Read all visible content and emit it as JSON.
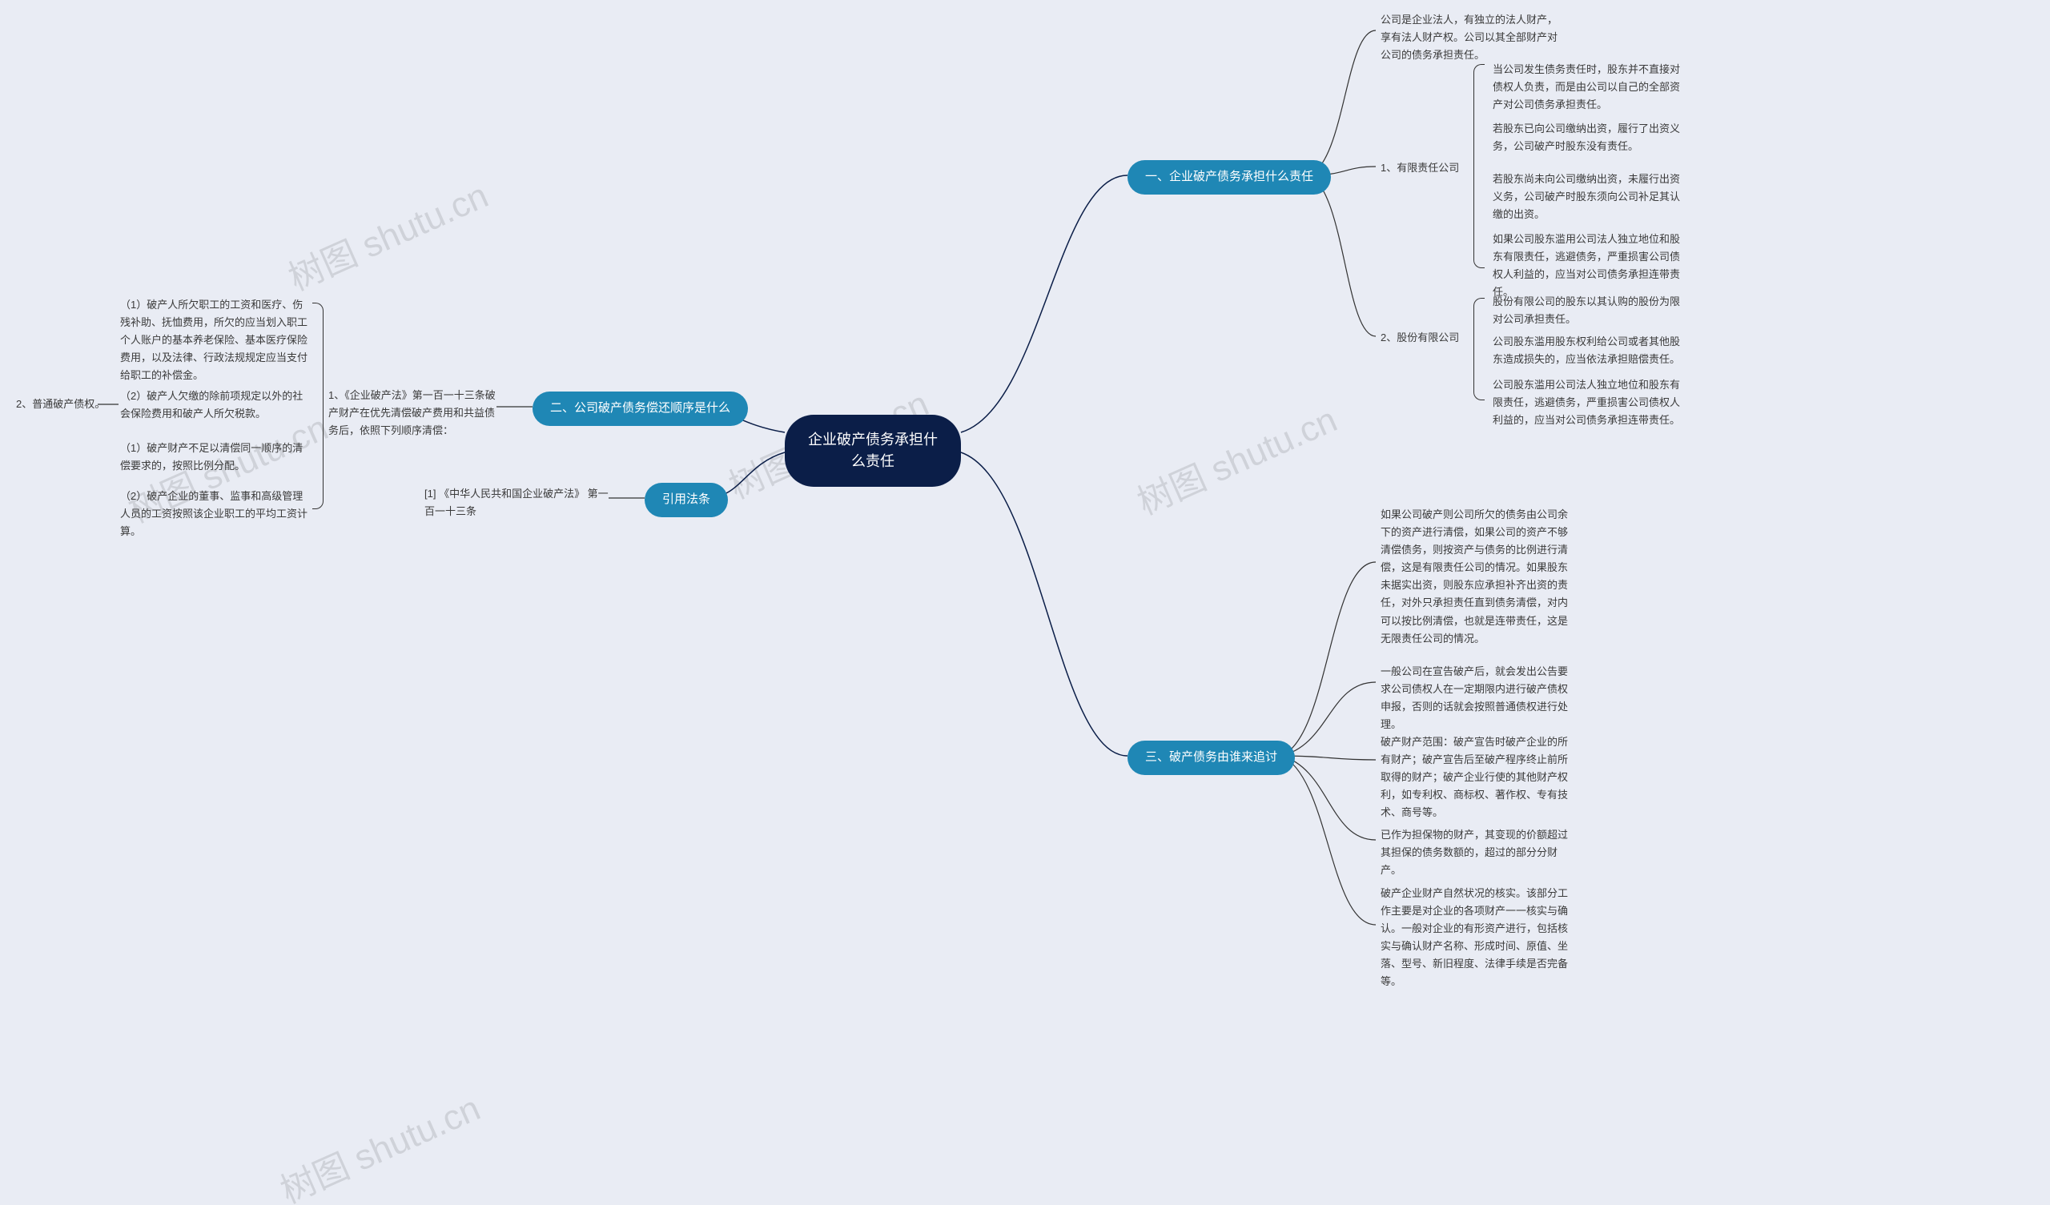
{
  "colors": {
    "background": "#e9ecf4",
    "root_bg": "#0b1e48",
    "section_bg": "#1f87b5",
    "text_dark": "#3a3a3a",
    "line": "#333333",
    "curve": "#0b1e48"
  },
  "watermark_text": "树图 shutu.cn",
  "root": {
    "title": "企业破产债务承担什么责任"
  },
  "sections": {
    "s1": {
      "label": "一、企业破产债务承担什么责任"
    },
    "s2": {
      "label": "二、公司破产债务偿还顺序是什么"
    },
    "s3": {
      "label": "三、破产债务由谁来追讨"
    },
    "cite": {
      "label": "引用法条"
    }
  },
  "s1": {
    "intro": "公司是企业法人，有独立的法人财产，享有法人财产权。公司以其全部财产对公司的债务承担责任。",
    "llc_label": "1、有限责任公司",
    "llc": {
      "p1": "当公司发生债务责任时，股东并不直接对债权人负责，而是由公司以自己的全部资产对公司债务承担责任。",
      "p2": "若股东已向公司缴纳出资，履行了出资义务，公司破产时股东没有责任。",
      "p3": "若股东尚未向公司缴纳出资，未履行出资义务，公司破产时股东须向公司补足其认缴的出资。",
      "p4": "如果公司股东滥用公司法人独立地位和股东有限责任，逃避债务，严重损害公司债权人利益的，应当对公司债务承担连带责任。"
    },
    "jsc_label": "2、股份有限公司",
    "jsc": {
      "p1": "股份有限公司的股东以其认购的股份为限对公司承担责任。",
      "p2": "公司股东滥用股东权利给公司或者其他股东造成损失的，应当依法承担赔偿责任。",
      "p3": "公司股东滥用公司法人独立地位和股东有限责任，逃避债务，严重损害公司债权人利益的，应当对公司债务承担连带责任。"
    }
  },
  "s2": {
    "main_label": "1、《企业破产法》第一百一十三条破产财产在优先清偿破产费用和共益债务后，依照下列顺序清偿：",
    "items": {
      "i1": "（1）破产人所欠职工的工资和医疗、伤残补助、抚恤费用，所欠的应当划入职工个人账户的基本养老保险、基本医疗保险费用，以及法律、行政法规规定应当支付给职工的补偿金。",
      "i2": "（2）破产人欠缴的除前项规定以外的社会保险费用和破产人所欠税款。",
      "i3": "（1）破产财产不足以清偿同一顺序的清偿要求的，按照比例分配。",
      "i4": "（2）破产企业的董事、监事和高级管理人员的工资按照该企业职工的平均工资计算。"
    },
    "ordinary_label": "2、普通破产债权。"
  },
  "s3": {
    "p1": "如果公司破产则公司所欠的债务由公司余下的资产进行清偿，如果公司的资产不够清偿债务，则按资产与债务的比例进行清偿，这是有限责任公司的情况。如果股东未据实出资，则股东应承担补齐出资的责任，对外只承担责任直到债务清偿，对内可以按比例清偿，也就是连带责任，这是无限责任公司的情况。",
    "p2": "一般公司在宣告破产后，就会发出公告要求公司债权人在一定期限内进行破产债权申报，否则的话就会按照普通债权进行处理。",
    "p3": "破产财产范围：破产宣告时破产企业的所有财产；破产宣告后至破产程序终止前所取得的财产；破产企业行使的其他财产权利，如专利权、商标权、著作权、专有技术、商号等。",
    "p4": "已作为担保物的财产，其变现的价额超过其担保的债务数额的，超过的部分分财产。",
    "p5": "破产企业财产自然状况的核实。该部分工作主要是对企业的各项财产一一核实与确认。一般对企业的有形资产进行，包括核实与确认财产名称、形成时间、原值、坐落、型号、新旧程度、法律手续是否完备等。"
  },
  "cite": {
    "ref": "[1] 《中华人民共和国企业破产法》 第一百一十三条"
  }
}
